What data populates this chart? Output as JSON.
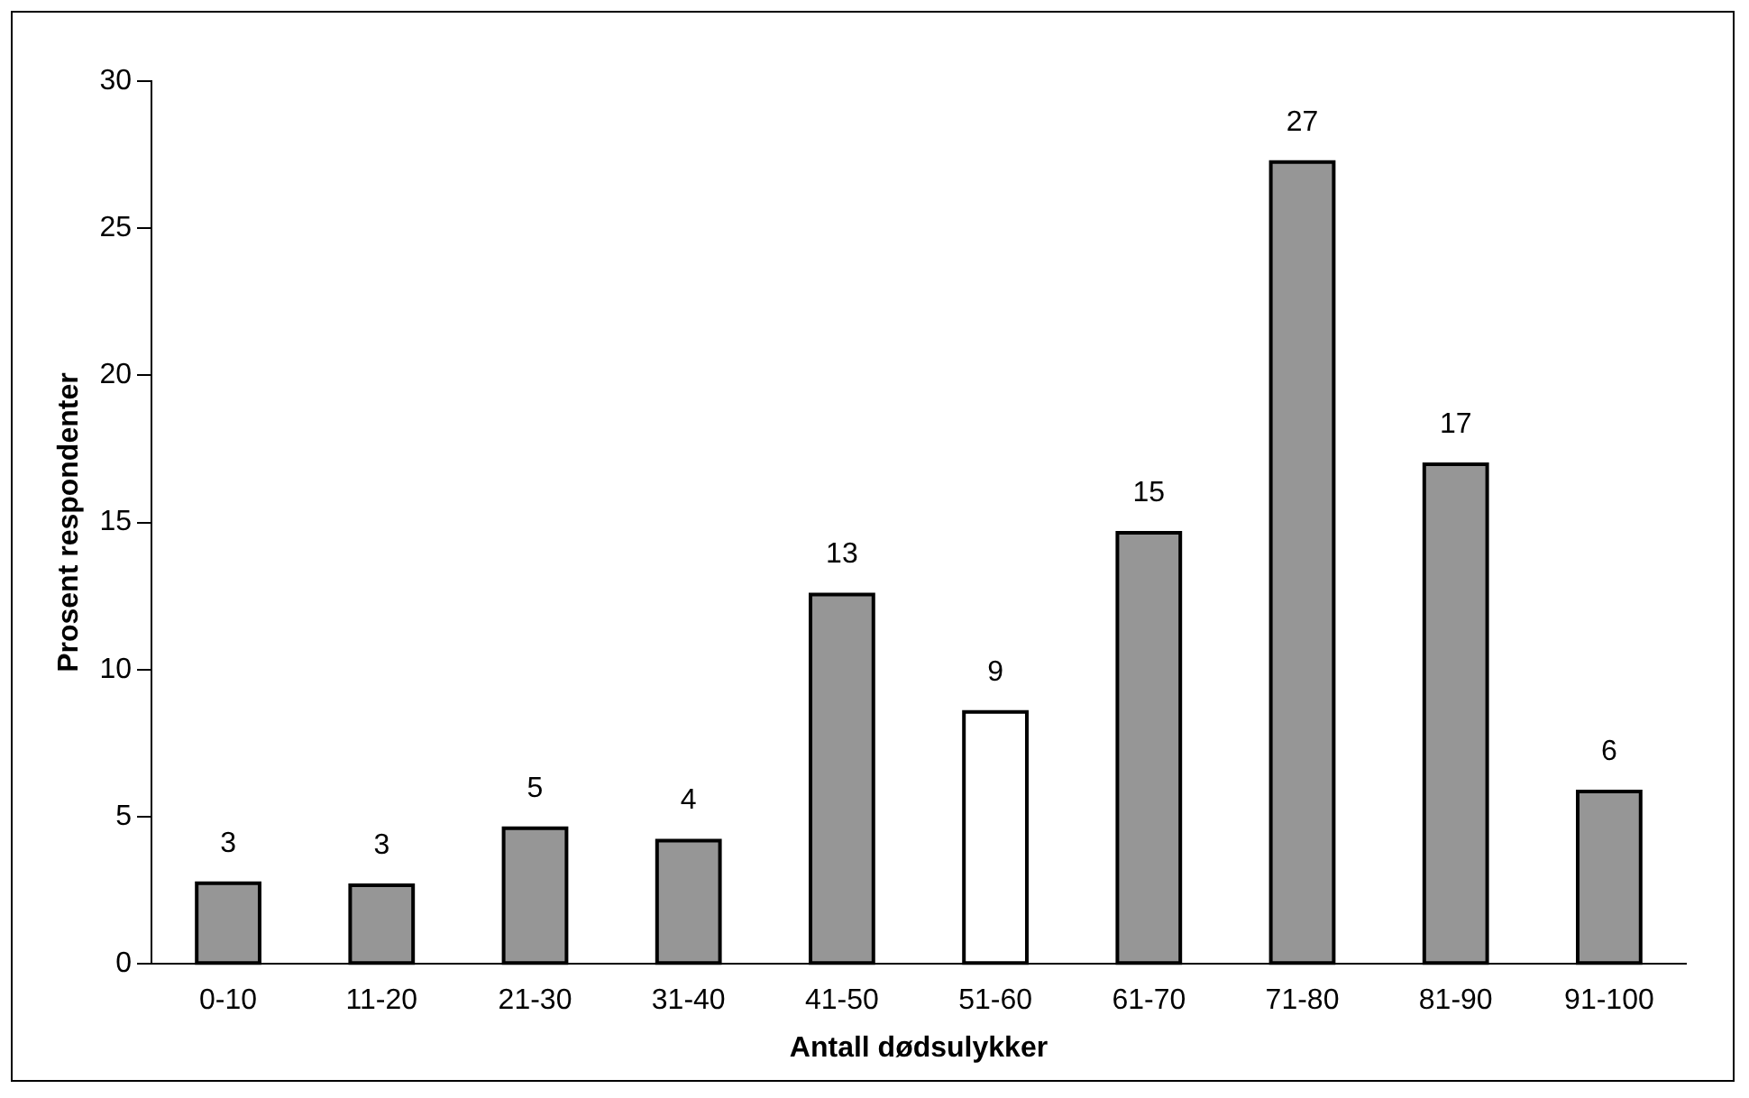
{
  "chart_data": {
    "type": "bar",
    "xlabel": "Antall dødsulykker",
    "ylabel": "Prosent respondenter",
    "categories": [
      "0-10",
      "11-20",
      "21-30",
      "31-40",
      "41-50",
      "51-60",
      "61-70",
      "71-80",
      "81-90",
      "91-100"
    ],
    "values": [
      2.74,
      2.67,
      4.61,
      4.19,
      12.55,
      8.56,
      14.65,
      27.25,
      16.98,
      5.86
    ],
    "value_labels": [
      "3",
      "3",
      "5",
      "4",
      "13",
      "9",
      "15",
      "27",
      "17",
      "6"
    ],
    "colors": [
      "#969696",
      "#969696",
      "#969696",
      "#969696",
      "#969696",
      "#ffffff",
      "#969696",
      "#969696",
      "#969696",
      "#969696"
    ],
    "ylim": [
      0,
      30
    ],
    "yticks": [
      0,
      5,
      10,
      15,
      20,
      25,
      30
    ],
    "grid": false,
    "legend": false
  }
}
